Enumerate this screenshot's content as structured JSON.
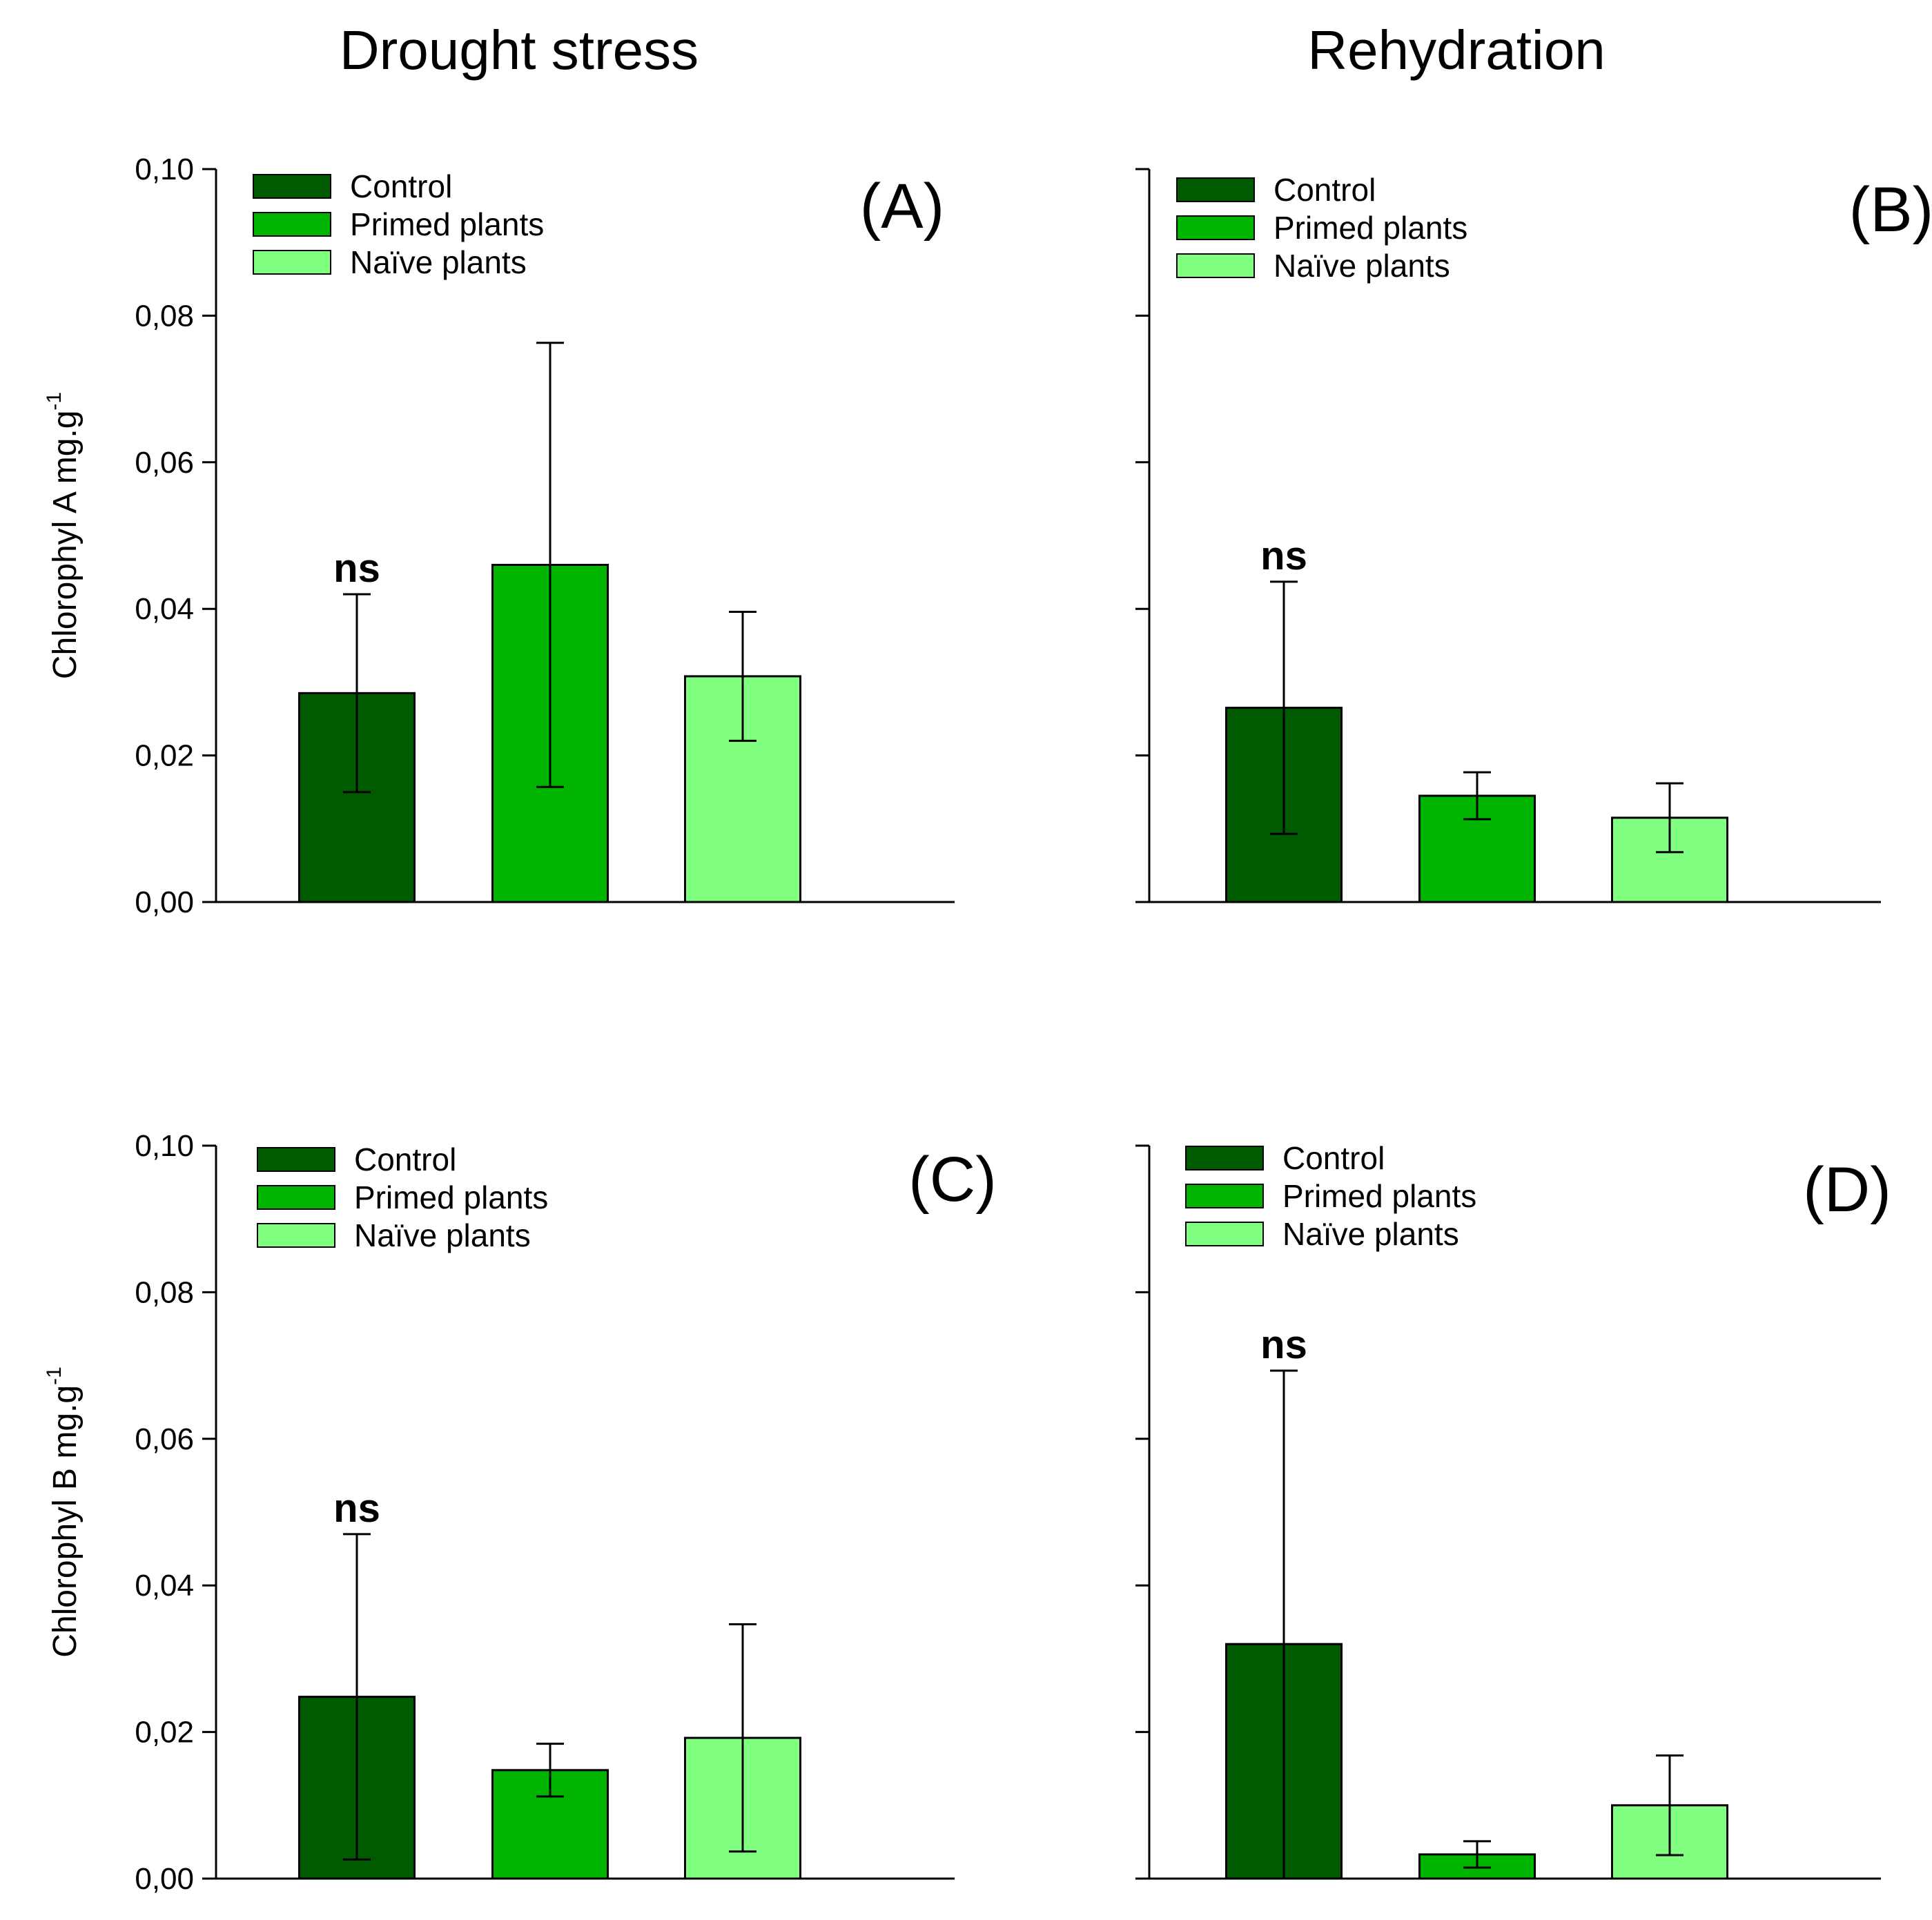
{
  "column_titles": [
    "Drought stress",
    "Rehydration"
  ],
  "colors": {
    "control": "#005a00",
    "primed": "#00b400",
    "naive": "#80ff80"
  },
  "chart_data": [
    {
      "type": "bar",
      "panel": "(A)",
      "column": "Drought stress",
      "ylabel": "Chlorophyl A mg.g",
      "ylabel_sup": "-1",
      "ylim": [
        0,
        0.1
      ],
      "yticks": [
        "0,00",
        "0,02",
        "0,04",
        "0,06",
        "0,08",
        "0,10"
      ],
      "legend_position": "top-left",
      "categories": [
        "Control",
        "Primed plants",
        "Naïve plants"
      ],
      "values": [
        0.0285,
        0.046,
        0.0308
      ],
      "errors": [
        0.0135,
        0.0303,
        0.0088
      ],
      "annotation": "ns"
    },
    {
      "type": "bar",
      "panel": "(B)",
      "column": "Rehydration",
      "ylabel": "",
      "ylabel_sup": "",
      "ylim": [
        0,
        0.1
      ],
      "yticks": [],
      "legend_position": "top-left",
      "categories": [
        "Control",
        "Primed plants",
        "Naïve plants"
      ],
      "values": [
        0.0265,
        0.0145,
        0.0115
      ],
      "errors": [
        0.0172,
        0.0032,
        0.0047
      ],
      "annotation": "ns"
    },
    {
      "type": "bar",
      "panel": "(C)",
      "column": "Drought stress",
      "ylabel": "Chlorophyl B mg.g",
      "ylabel_sup": "-1",
      "ylim": [
        0,
        0.1
      ],
      "yticks": [
        "0,00",
        "0,02",
        "0,04",
        "0,06",
        "0,08",
        "0,10"
      ],
      "legend_position": "top-left",
      "categories": [
        "Control",
        "Primed plants",
        "Naïve plants"
      ],
      "values": [
        0.0248,
        0.0148,
        0.0192
      ],
      "errors": [
        0.0222,
        0.0036,
        0.0155
      ],
      "annotation": "ns"
    },
    {
      "type": "bar",
      "panel": "(D)",
      "column": "Rehydration",
      "ylabel": "",
      "ylabel_sup": "",
      "ylim": [
        0,
        0.1
      ],
      "yticks": [],
      "legend_position": "top-left",
      "categories": [
        "Control",
        "Primed plants",
        "Naïve plants"
      ],
      "values": [
        0.032,
        0.0033,
        0.01
      ],
      "errors": [
        0.0373,
        0.0018,
        0.0068
      ],
      "annotation": "ns"
    }
  ]
}
